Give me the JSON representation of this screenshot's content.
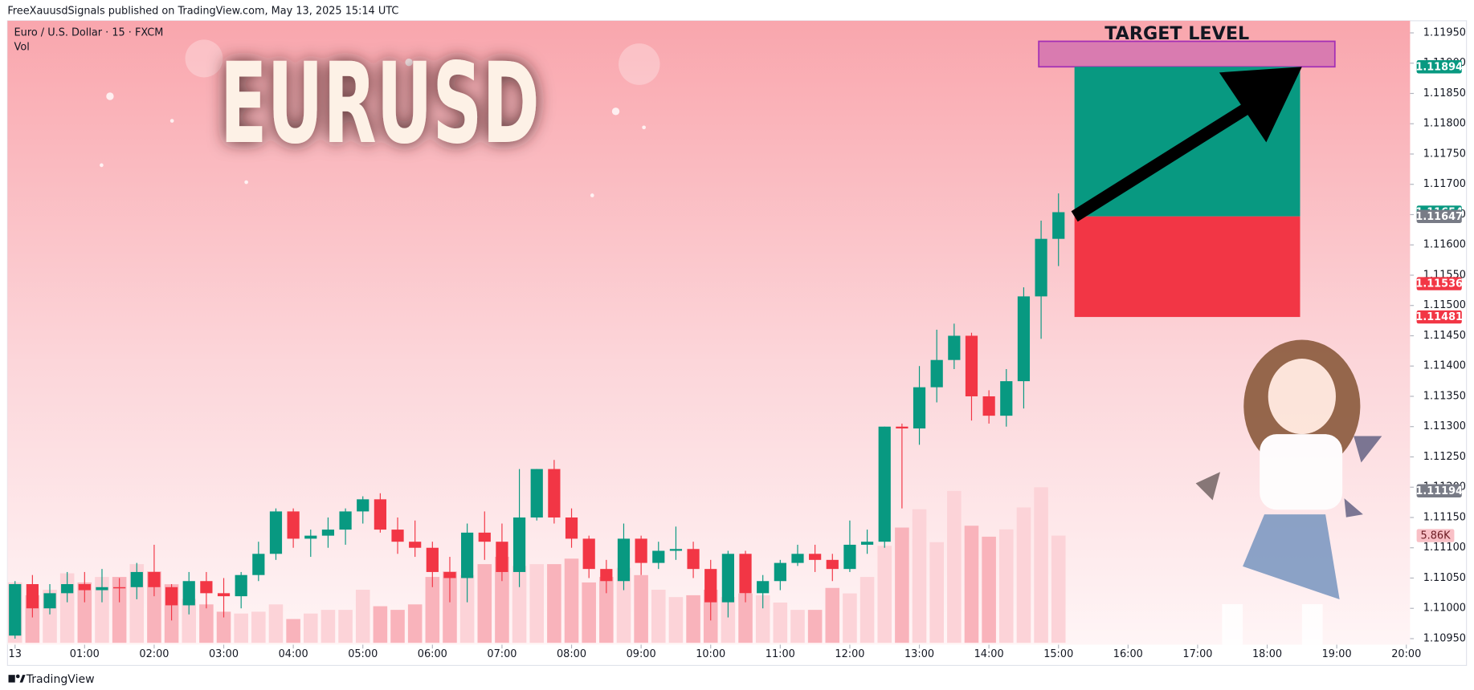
{
  "header": {
    "publisher": "FreeXauusdSignals published on TradingView.com, May 13, 2025 15:14 UTC"
  },
  "legend": {
    "symbol": "Euro / U.S. Dollar · 15 · FXCM",
    "volume": "Vol"
  },
  "overlay": {
    "title": "EURUSD",
    "target_label": "TARGET LEVEL"
  },
  "footer": {
    "brand": "TradingView"
  },
  "chart_data": {
    "type": "candlestick",
    "up_color": "#089981",
    "down_color": "#f23645",
    "open": [
      1.10955,
      1.1104,
      1.11,
      1.11025,
      1.1104,
      1.1103,
      1.11035,
      1.11035,
      1.1106,
      1.11035,
      1.11005,
      1.11045,
      1.11025,
      1.1102,
      1.11055,
      1.1109,
      1.1116,
      1.11115,
      1.1112,
      1.1113,
      1.1116,
      1.1118,
      1.1113,
      1.1111,
      1.111,
      1.1106,
      1.1105,
      1.11125,
      1.1111,
      1.1106,
      1.1115,
      1.1123,
      1.1115,
      1.11115,
      1.11065,
      1.11045,
      1.11115,
      1.11075,
      1.11095,
      1.11098,
      1.11065,
      1.1101,
      1.1109,
      1.11025,
      1.11045,
      1.11075,
      1.1109,
      1.1108,
      1.11065,
      1.11105,
      1.1111,
      1.113,
      1.11297,
      1.11365,
      1.1141,
      1.1145,
      1.1135,
      1.11318,
      1.11375,
      1.11515,
      1.1161
    ],
    "high": [
      1.11045,
      1.11055,
      1.1104,
      1.1106,
      1.1106,
      1.11065,
      1.1105,
      1.11075,
      1.11105,
      1.1104,
      1.1106,
      1.1106,
      1.1105,
      1.1106,
      1.1111,
      1.11165,
      1.11165,
      1.1113,
      1.1115,
      1.11165,
      1.11185,
      1.1119,
      1.1115,
      1.11145,
      1.1111,
      1.11085,
      1.1114,
      1.1116,
      1.1114,
      1.1123,
      1.1123,
      1.11245,
      1.11165,
      1.1112,
      1.1108,
      1.1114,
      1.1112,
      1.1111,
      1.11135,
      1.1111,
      1.1108,
      1.11095,
      1.11095,
      1.11055,
      1.1108,
      1.11105,
      1.11105,
      1.1109,
      1.11145,
      1.1113,
      1.113,
      1.11305,
      1.114,
      1.1146,
      1.1147,
      1.11455,
      1.1136,
      1.11395,
      1.1153,
      1.1164,
      1.11685
    ],
    "low": [
      1.1095,
      1.10985,
      1.1099,
      1.1101,
      1.1101,
      1.1101,
      1.1101,
      1.11015,
      1.1102,
      1.1098,
      1.1099,
      1.11,
      1.10985,
      1.11,
      1.11045,
      1.1108,
      1.111,
      1.11085,
      1.111,
      1.11105,
      1.1114,
      1.11125,
      1.1109,
      1.11085,
      1.11035,
      1.1101,
      1.1101,
      1.1108,
      1.11045,
      1.11035,
      1.11145,
      1.1114,
      1.111,
      1.1105,
      1.11025,
      1.1103,
      1.11055,
      1.11065,
      1.1108,
      1.1105,
      1.1098,
      1.10985,
      1.1101,
      1.11,
      1.1103,
      1.1107,
      1.1106,
      1.11045,
      1.1106,
      1.1109,
      1.111,
      1.11165,
      1.1127,
      1.1134,
      1.11395,
      1.1131,
      1.11305,
      1.113,
      1.1133,
      1.11445,
      1.11565
    ],
    "close": [
      1.1104,
      1.11,
      1.11025,
      1.1104,
      1.1103,
      1.11035,
      1.11033,
      1.1106,
      1.11035,
      1.11005,
      1.11045,
      1.11025,
      1.1102,
      1.11055,
      1.1109,
      1.1116,
      1.11115,
      1.1112,
      1.1113,
      1.1116,
      1.1118,
      1.1113,
      1.1111,
      1.111,
      1.1106,
      1.1105,
      1.11125,
      1.1111,
      1.1106,
      1.1115,
      1.1123,
      1.1115,
      1.11115,
      1.11065,
      1.11045,
      1.11115,
      1.11075,
      1.11095,
      1.11098,
      1.11065,
      1.1101,
      1.1109,
      1.11025,
      1.11045,
      1.11075,
      1.1109,
      1.1108,
      1.11065,
      1.11105,
      1.1111,
      1.113,
      1.11297,
      1.11365,
      1.1141,
      1.1145,
      1.1135,
      1.11318,
      1.11375,
      1.11515,
      1.1161,
      1.11654
    ],
    "volume": {
      "values": [
        3300,
        2600,
        2900,
        3800,
        3300,
        3600,
        3600,
        4300,
        3900,
        3200,
        2400,
        2100,
        1700,
        1600,
        1700,
        2100,
        1300,
        1600,
        1800,
        1800,
        2900,
        2000,
        1800,
        2100,
        3600,
        3900,
        3700,
        4300,
        4700,
        4200,
        4300,
        4300,
        4600,
        3300,
        3600,
        4100,
        3700,
        2900,
        2500,
        2600,
        2900,
        2500,
        2700,
        2600,
        2200,
        1800,
        1800,
        3000,
        2700,
        3600,
        5300,
        6300,
        7300,
        5500,
        8300,
        6400,
        5800,
        6200,
        7400,
        8500,
        5860
      ],
      "up_color": "#fcd3d8",
      "down_color": "#f9b3bb",
      "ylim": [
        0,
        34000
      ],
      "tag": {
        "value": 5860,
        "label": "5.86K"
      }
    },
    "ylim": [
      1.1094,
      1.1197
    ],
    "yticks": [
      {
        "value": 1.1095,
        "label": "1.10950"
      },
      {
        "value": 1.11,
        "label": "1.11000"
      },
      {
        "value": 1.1105,
        "label": "1.11050"
      },
      {
        "value": 1.111,
        "label": "1.11100"
      },
      {
        "value": 1.1115,
        "label": "1.11150"
      },
      {
        "value": 1.112,
        "label": "1.11200"
      },
      {
        "value": 1.1125,
        "label": "1.11250"
      },
      {
        "value": 1.113,
        "label": "1.11300"
      },
      {
        "value": 1.1135,
        "label": "1.11350"
      },
      {
        "value": 1.114,
        "label": "1.11400"
      },
      {
        "value": 1.1145,
        "label": "1.11450"
      },
      {
        "value": 1.115,
        "label": "1.11500"
      },
      {
        "value": 1.1155,
        "label": "1.11550"
      },
      {
        "value": 1.116,
        "label": "1.11600"
      },
      {
        "value": 1.1165,
        "label": "1.11650"
      },
      {
        "value": 1.117,
        "label": "1.11700"
      },
      {
        "value": 1.1175,
        "label": "1.11750"
      },
      {
        "value": 1.118,
        "label": "1.11800"
      },
      {
        "value": 1.1185,
        "label": "1.11850"
      },
      {
        "value": 1.119,
        "label": "1.11900"
      },
      {
        "value": 1.1195,
        "label": "1.11950"
      }
    ],
    "xticks": [
      "13",
      "01:00",
      "02:00",
      "03:00",
      "04:00",
      "05:00",
      "06:00",
      "07:00",
      "08:00",
      "09:00",
      "10:00",
      "11:00",
      "12:00",
      "13:00",
      "14:00",
      "15:00",
      "16:00",
      "17:00",
      "18:00",
      "19:00",
      "20:00"
    ],
    "position": {
      "target": 1.11894,
      "entry": 1.11647,
      "stop": 1.11481,
      "target_color": "#089981",
      "stop_color": "#f23645",
      "entry_color": "#787b86"
    },
    "price_tags": [
      {
        "value": 1.11536,
        "color": "#f23645"
      },
      {
        "value": 1.11194,
        "color": "#787b86"
      }
    ]
  }
}
